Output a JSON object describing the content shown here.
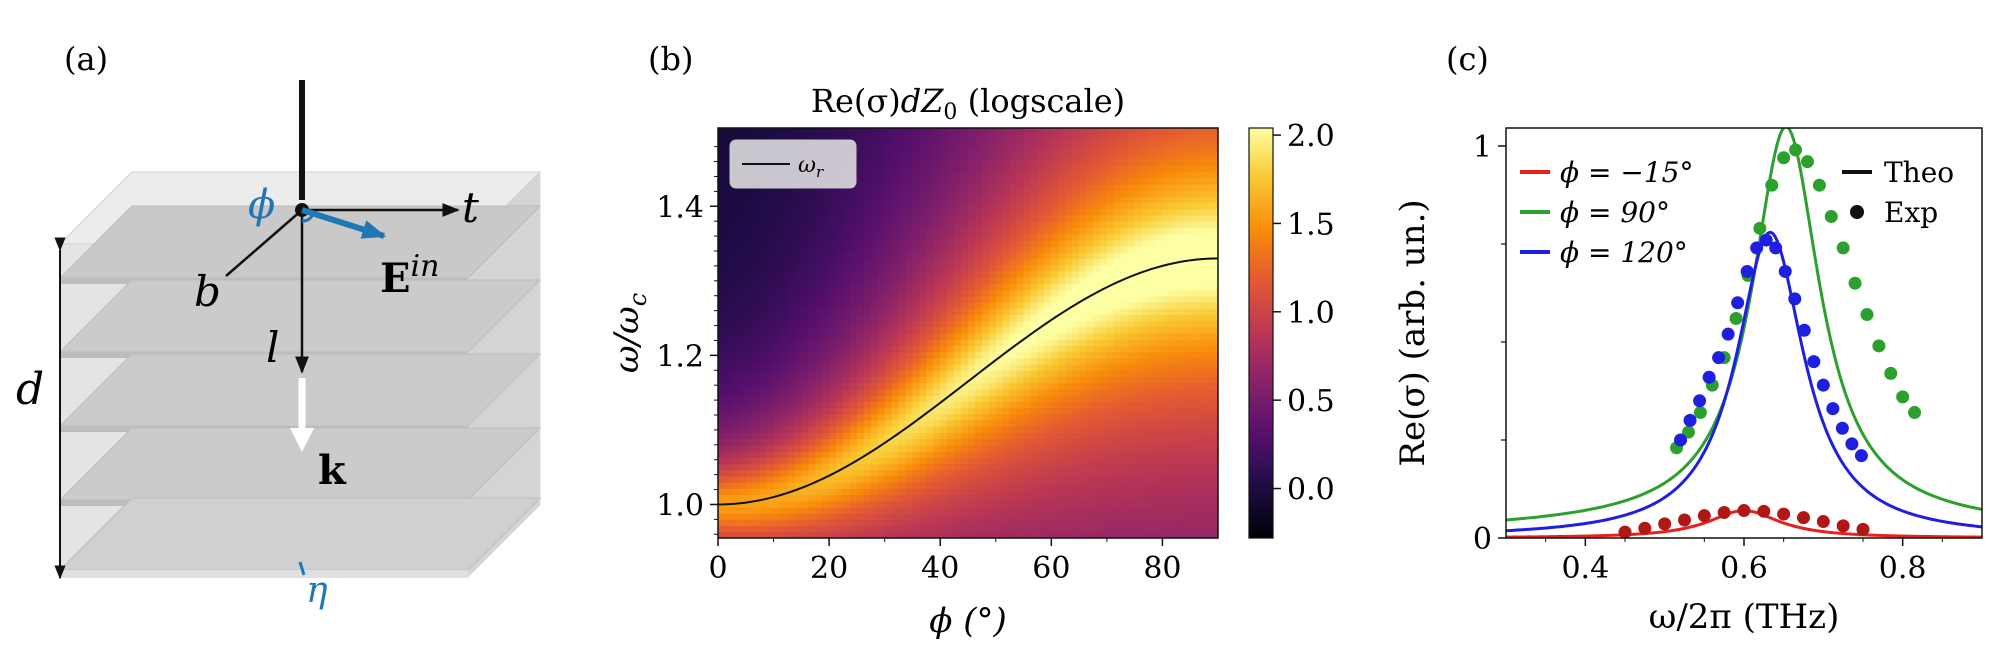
{
  "panel_labels": {
    "a": "(a)",
    "b": "(b)",
    "c": "(c)"
  },
  "diagram": {
    "phi_label": "ϕ",
    "t_label": "t",
    "b_label": "b",
    "l_label": "l",
    "d_label": "d",
    "e_base": "E",
    "e_sup": "in",
    "k_label": "k",
    "eta_label": "η",
    "colors": {
      "slab": "#c8c8c8",
      "blue": "#1f77b4"
    }
  },
  "chart_data": [
    {
      "type": "heatmap",
      "title_prefix": "Re(σ)",
      "title_mid": "dZ",
      "title_sub": "0",
      "title_suffix": " (logscale)",
      "xlabel": "ϕ (°)",
      "ylabel_base": "ω/ω",
      "ylabel_sub": "c",
      "xlim": [
        0,
        90
      ],
      "ylim": [
        0.955,
        1.505
      ],
      "xticks": [
        0,
        20,
        40,
        60,
        80
      ],
      "xtick_labels": [
        "0",
        "20",
        "40",
        "60",
        "80"
      ],
      "yticks": [
        1.0,
        1.2,
        1.4
      ],
      "ytick_labels": [
        "1.0",
        "1.2",
        "1.4"
      ],
      "colorbar": {
        "range": [
          -0.28,
          2.04
        ],
        "ticks": [
          0.0,
          0.5,
          1.0,
          1.5,
          2.0
        ],
        "tick_labels": [
          "0.0",
          "0.5",
          "1.0",
          "1.5",
          "2.0"
        ],
        "colormap": "inferno"
      },
      "resonance_curve": {
        "name": "ω",
        "name_sub": "r",
        "formula": "1 + 0.33 * sin(phi)^2",
        "phi": [
          0,
          10,
          20,
          30,
          40,
          50,
          60,
          70,
          80,
          90
        ],
        "omega": [
          1.0,
          1.01,
          1.039,
          1.083,
          1.136,
          1.194,
          1.248,
          1.291,
          1.32,
          1.33
        ]
      },
      "legend": {
        "position": "top-left"
      }
    },
    {
      "type": "line",
      "xlabel": "ω/2π (THz)",
      "ylabel": "Re(σ) (arb. un.)",
      "xlim": [
        0.3,
        0.9
      ],
      "ylim": [
        0,
        1
      ],
      "xticks": [
        0.4,
        0.6,
        0.8
      ],
      "xtick_labels": [
        "0.4",
        "0.6",
        "0.8"
      ],
      "yticks": [
        0,
        1
      ],
      "ytick_labels": [
        "0",
        "1"
      ],
      "minor_yticks": [
        0.25,
        0.5,
        0.75
      ],
      "legend_series": [
        {
          "label": "ϕ = −15°",
          "color": "#e8211c"
        },
        {
          "label": "ϕ = 90°",
          "color": "#2ca02c"
        },
        {
          "label": "ϕ = 120°",
          "color": "#1f1fe0"
        }
      ],
      "legend_styles": [
        {
          "label": "Theo",
          "marker": "line"
        },
        {
          "label": "Exp",
          "marker": "dot"
        }
      ],
      "series": [
        {
          "name": "ϕ = −15°",
          "line_color": "#e8211c",
          "dot_color": "#b01818",
          "theory": {
            "center": 0.6,
            "gamma": 0.055,
            "peak": 0.07,
            "base": 0.0
          },
          "exp_x": [
            0.45,
            0.475,
            0.5,
            0.525,
            0.55,
            0.575,
            0.6,
            0.625,
            0.65,
            0.675,
            0.7,
            0.725,
            0.75
          ],
          "exp_y": [
            0.015,
            0.025,
            0.036,
            0.046,
            0.057,
            0.065,
            0.07,
            0.068,
            0.061,
            0.052,
            0.042,
            0.031,
            0.022
          ]
        },
        {
          "name": "ϕ = 90°",
          "line_color": "#2ca02c",
          "dot_color": "#2ca02c",
          "theory": {
            "center": 0.653,
            "gamma": 0.052,
            "peak": 1.0,
            "base": 0.02
          },
          "exp_x": [
            0.515,
            0.53,
            0.545,
            0.56,
            0.575,
            0.59,
            0.605,
            0.62,
            0.635,
            0.65,
            0.665,
            0.68,
            0.695,
            0.71,
            0.725,
            0.74,
            0.755,
            0.77,
            0.785,
            0.8,
            0.815
          ],
          "exp_y": [
            0.23,
            0.27,
            0.32,
            0.39,
            0.46,
            0.56,
            0.67,
            0.79,
            0.9,
            0.97,
            0.99,
            0.96,
            0.9,
            0.82,
            0.74,
            0.65,
            0.57,
            0.49,
            0.42,
            0.36,
            0.32
          ]
        },
        {
          "name": "ϕ = 120°",
          "line_color": "#1f1fe0",
          "dot_color": "#1f1fe0",
          "theory": {
            "center": 0.633,
            "gamma": 0.052,
            "peak": 0.78,
            "base": 0.0
          },
          "exp_x": [
            0.52,
            0.532,
            0.544,
            0.556,
            0.568,
            0.58,
            0.592,
            0.604,
            0.616,
            0.628,
            0.64,
            0.652,
            0.664,
            0.676,
            0.688,
            0.7,
            0.712,
            0.724,
            0.736,
            0.748
          ],
          "exp_y": [
            0.25,
            0.3,
            0.35,
            0.41,
            0.46,
            0.52,
            0.6,
            0.68,
            0.74,
            0.76,
            0.74,
            0.68,
            0.61,
            0.53,
            0.45,
            0.39,
            0.33,
            0.28,
            0.24,
            0.21
          ]
        }
      ]
    }
  ]
}
